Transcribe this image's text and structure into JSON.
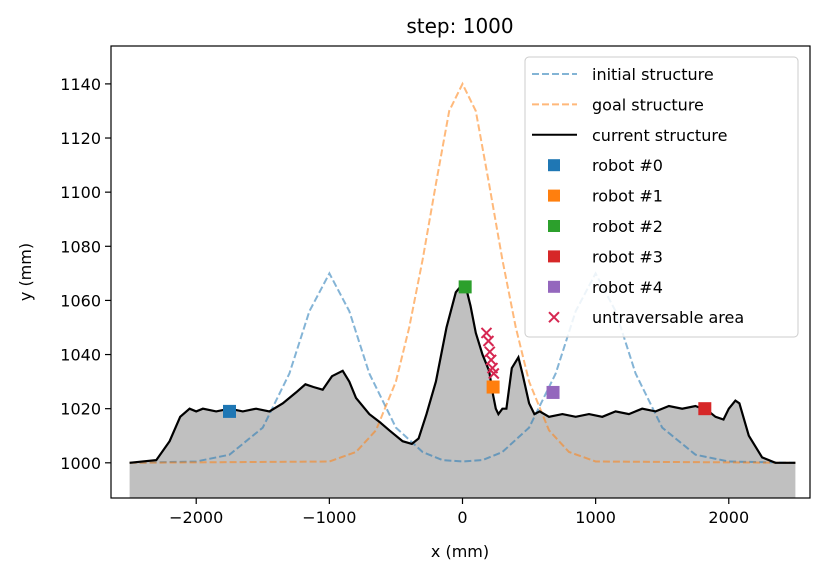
{
  "chart_data": {
    "type": "line",
    "title": "step: 1000",
    "xlabel": "x (mm)",
    "ylabel": "y (mm)",
    "xlim": [
      -2640,
      2610
    ],
    "ylim": [
      987,
      1154
    ],
    "xticks": [
      -2000,
      -1000,
      0,
      1000,
      2000
    ],
    "yticks": [
      1000,
      1020,
      1040,
      1060,
      1080,
      1100,
      1120,
      1140
    ],
    "grid": false,
    "legend_position": "top-right",
    "colors": {
      "initial": "#1f77b4",
      "goal": "#ff7f0e",
      "current": "#000000",
      "fill": "#c0c0c0",
      "robot0": "#1f77b4",
      "robot1": "#ff7f0e",
      "robot2": "#2ca02c",
      "robot3": "#d62728",
      "robot4": "#9467bd",
      "untraversable": "#d62751"
    },
    "series": [
      {
        "name": "initial structure",
        "style": "dashed",
        "x": [
          -2500,
          -2000,
          -1750,
          -1500,
          -1300,
          -1150,
          -1000,
          -850,
          -700,
          -500,
          -300,
          -150,
          0,
          150,
          300,
          500,
          700,
          850,
          1000,
          1150,
          1300,
          1500,
          1750,
          2000,
          2500
        ],
        "y": [
          1000,
          1000.5,
          1003,
          1013,
          1033,
          1056,
          1070,
          1056,
          1033,
          1013,
          1004,
          1001,
          1000.5,
          1001,
          1004,
          1013,
          1033,
          1056,
          1070,
          1056,
          1033,
          1013,
          1003,
          1000.5,
          1000
        ]
      },
      {
        "name": "goal structure",
        "style": "dashed",
        "x": [
          -2500,
          -1000,
          -800,
          -650,
          -500,
          -400,
          -300,
          -200,
          -100,
          0,
          100,
          200,
          300,
          400,
          500,
          650,
          800,
          1000,
          2500
        ],
        "y": [
          1000,
          1000.5,
          1004,
          1012,
          1030,
          1050,
          1075,
          1103,
          1130,
          1140,
          1130,
          1103,
          1075,
          1050,
          1030,
          1012,
          1004,
          1000.5,
          1000
        ]
      },
      {
        "name": "current structure",
        "style": "solid",
        "x": [
          -2500,
          -2300,
          -2200,
          -2120,
          -2050,
          -2000,
          -1950,
          -1850,
          -1750,
          -1650,
          -1550,
          -1450,
          -1350,
          -1250,
          -1180,
          -1120,
          -1050,
          -980,
          -900,
          -850,
          -800,
          -700,
          -620,
          -550,
          -450,
          -380,
          -330,
          -270,
          -200,
          -120,
          -50,
          0,
          30,
          60,
          100,
          150,
          200,
          230,
          250,
          270,
          300,
          330,
          370,
          420,
          450,
          500,
          540,
          580,
          650,
          750,
          850,
          950,
          1050,
          1150,
          1250,
          1350,
          1450,
          1550,
          1650,
          1750,
          1850,
          1900,
          1960,
          2000,
          2050,
          2080,
          2150,
          2250,
          2350,
          2500
        ],
        "y": [
          1000,
          1001,
          1008,
          1017,
          1020,
          1019,
          1020,
          1019,
          1020,
          1019,
          1020,
          1019,
          1022,
          1026,
          1029,
          1028,
          1027,
          1032,
          1034,
          1030,
          1024,
          1018,
          1015,
          1012,
          1008,
          1007,
          1009,
          1018,
          1030,
          1050,
          1063,
          1066,
          1064,
          1058,
          1048,
          1040,
          1034,
          1025,
          1020,
          1018,
          1020,
          1020,
          1035,
          1039,
          1033,
          1022,
          1018,
          1019,
          1017,
          1018,
          1017,
          1018,
          1017,
          1019,
          1018,
          1020,
          1019,
          1021,
          1020,
          1021,
          1019,
          1017,
          1016,
          1020,
          1023,
          1022,
          1010,
          1002,
          1000,
          1000
        ]
      }
    ],
    "robots": [
      {
        "name": "robot #0",
        "x": -1750,
        "y": 1019
      },
      {
        "name": "robot #1",
        "x": 230,
        "y": 1028
      },
      {
        "name": "robot #2",
        "x": 20,
        "y": 1065
      },
      {
        "name": "robot #3",
        "x": 1820,
        "y": 1020
      },
      {
        "name": "robot #4",
        "x": 680,
        "y": 1026
      }
    ],
    "untraversable_area": {
      "name": "untraversable area",
      "x": [
        180,
        195,
        205,
        215,
        225,
        235
      ],
      "y": [
        1048,
        1045,
        1041,
        1038,
        1035,
        1033
      ]
    }
  }
}
